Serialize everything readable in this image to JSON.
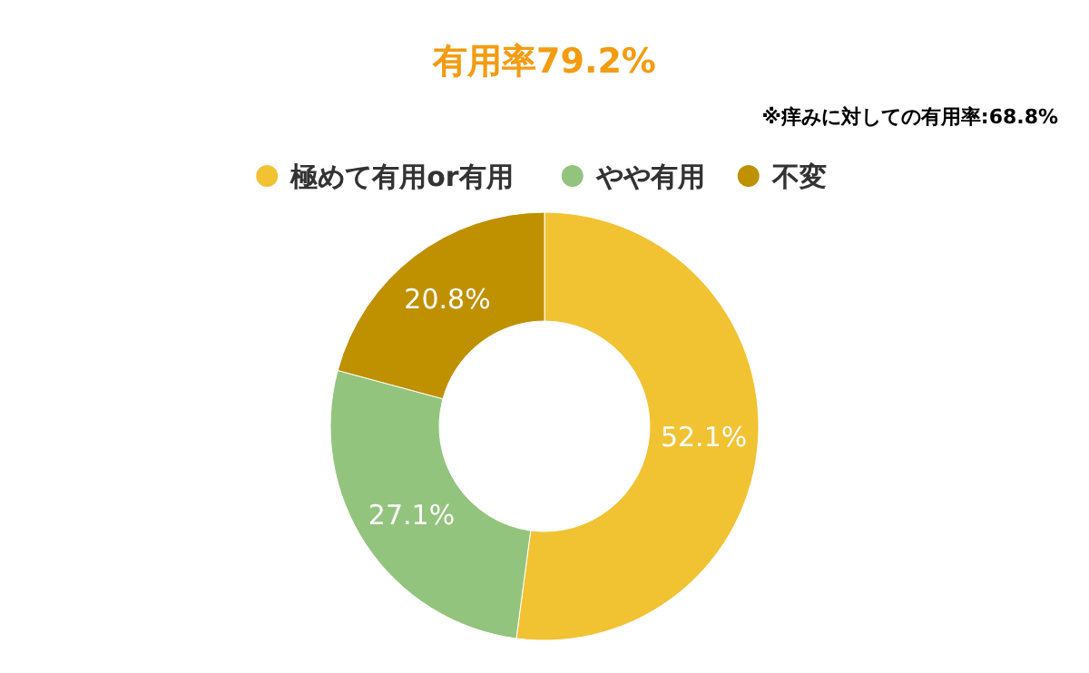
{
  "chart_data": {
    "type": "donut",
    "title": "有用率79.2%",
    "subtitle": "※痒みに対しての有用率:68.8%",
    "categories": [
      "極めて有用or有用",
      "やや有用",
      "不変"
    ],
    "values": [
      52.1,
      27.1,
      20.8
    ],
    "colors": [
      "#f1c232",
      "#93c47d",
      "#bf9000"
    ],
    "value_labels": [
      "52.1%",
      "27.1%",
      "20.8%"
    ],
    "legend": "top"
  }
}
